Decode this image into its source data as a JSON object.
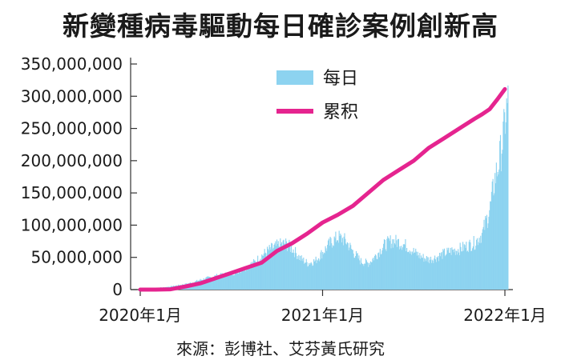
{
  "title": "新變種病毒驅動每日確診案例創新高",
  "source": "來源：彭博社、艾芬黃氏研究",
  "colors": {
    "daily": "#8dd3f0",
    "cumulative": "#e5248f",
    "axis": "#333333",
    "text": "#1a1a1a"
  },
  "chart_data": {
    "type": "bar+line",
    "title": "新變種病毒驅動每日確診案例創新高",
    "xlabel": "",
    "ylabel": "",
    "ylim": [
      0,
      350000000
    ],
    "y_ticks": [
      0,
      50000000,
      100000000,
      150000000,
      200000000,
      250000000,
      300000000,
      350000000
    ],
    "y_tick_labels": [
      "0",
      "50,000,000",
      "100,000,000",
      "150,000,000",
      "200,000,000",
      "250,000,000",
      "300,000,000",
      "350,000,000"
    ],
    "x_unit": "months since 2020-01",
    "xlim": [
      0,
      25
    ],
    "x_ticks": [
      0,
      12,
      24
    ],
    "x_tick_labels": [
      "2020年1月",
      "2021年1月",
      "2022年1月"
    ],
    "legend_position": "top-center",
    "series": [
      {
        "name": "每日",
        "kind": "area",
        "color": "#8dd3f0",
        "x": [
          1,
          1.5,
          2,
          2.5,
          3,
          3.5,
          4,
          4.5,
          5,
          5.5,
          6,
          6.5,
          7,
          7.5,
          8,
          8.5,
          9,
          9.5,
          10,
          10.5,
          11,
          11.5,
          12,
          12.5,
          13,
          13.5,
          14,
          14.5,
          15,
          15.5,
          16,
          16.5,
          17,
          17.5,
          18,
          18.5,
          19,
          19.5,
          20,
          20.5,
          21,
          21.5,
          22,
          22.5,
          23,
          23.3,
          23.6,
          23.9,
          24,
          24.1,
          24.2
        ],
        "values": [
          3000000,
          3500000,
          5000000,
          7000000,
          9000000,
          12000000,
          16000000,
          19000000,
          22000000,
          24000000,
          26000000,
          30000000,
          36000000,
          44000000,
          55000000,
          64000000,
          70000000,
          74000000,
          65000000,
          50000000,
          42000000,
          46000000,
          60000000,
          75000000,
          84000000,
          78000000,
          60000000,
          45000000,
          42000000,
          55000000,
          70000000,
          78000000,
          76000000,
          70000000,
          60000000,
          52000000,
          48000000,
          52000000,
          58000000,
          62000000,
          65000000,
          70000000,
          75000000,
          90000000,
          130000000,
          175000000,
          205000000,
          250000000,
          275000000,
          290000000,
          300000000
        ]
      },
      {
        "name": "累积",
        "kind": "line",
        "color": "#e5248f",
        "x": [
          0,
          1,
          2,
          3,
          4,
          5,
          6,
          7,
          8,
          9,
          10,
          11,
          12,
          13,
          14,
          15,
          16,
          17,
          18,
          19,
          20,
          21,
          22,
          22.5,
          23,
          23.5,
          24
        ],
        "values": [
          0,
          0,
          500000,
          5000000,
          10000000,
          18000000,
          26000000,
          34000000,
          42000000,
          60000000,
          72000000,
          87000000,
          104000000,
          116000000,
          130000000,
          150000000,
          170000000,
          185000000,
          200000000,
          220000000,
          235000000,
          250000000,
          265000000,
          272000000,
          280000000,
          295000000,
          311000000
        ]
      }
    ]
  }
}
